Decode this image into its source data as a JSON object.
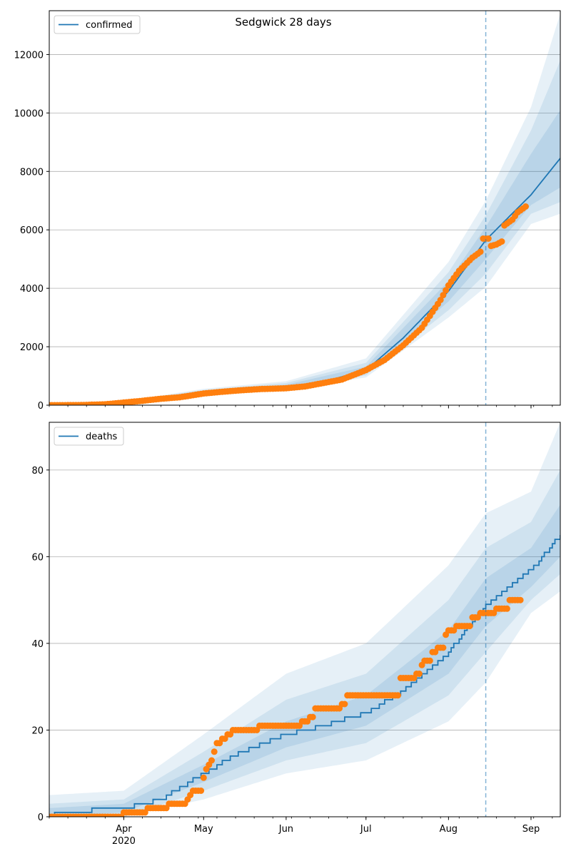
{
  "title": "Sedgwick 28 days",
  "colors": {
    "line": "#1f77b4",
    "observed": "#ff7f0e",
    "band": "#1f77b4",
    "grid": "#b0b0b0",
    "vline": "#1f77b4"
  },
  "x_axis": {
    "tick_labels": [
      "Apr",
      "May",
      "Jun",
      "Jul",
      "Aug",
      "Sep"
    ],
    "tick_dates": [
      "2020-04-01",
      "2020-05-01",
      "2020-06-01",
      "2020-07-01",
      "2020-08-01",
      "2020-09-01"
    ],
    "year_label": "2020",
    "xlim": [
      "2020-03-04",
      "2020-09-12"
    ],
    "forecast_start": "2020-08-15"
  },
  "chart_data": [
    {
      "type": "line",
      "legend": "confirmed",
      "legend_position": "top-left",
      "grid": "horizontal",
      "ylim": [
        0,
        13500
      ],
      "yticks": [
        0,
        2000,
        4000,
        6000,
        8000,
        10000,
        12000
      ],
      "forecast_median": [
        {
          "x": "2020-03-04",
          "y": 0
        },
        {
          "x": "2020-03-20",
          "y": 10
        },
        {
          "x": "2020-04-01",
          "y": 100
        },
        {
          "x": "2020-04-15",
          "y": 220
        },
        {
          "x": "2020-05-01",
          "y": 430
        },
        {
          "x": "2020-05-15",
          "y": 540
        },
        {
          "x": "2020-06-01",
          "y": 640
        },
        {
          "x": "2020-06-15",
          "y": 800
        },
        {
          "x": "2020-07-01",
          "y": 1200
        },
        {
          "x": "2020-07-15",
          "y": 2300
        },
        {
          "x": "2020-08-01",
          "y": 3900
        },
        {
          "x": "2020-08-15",
          "y": 5650
        },
        {
          "x": "2020-09-01",
          "y": 7200
        },
        {
          "x": "2020-09-12",
          "y": 8450
        }
      ],
      "bands": [
        {
          "lower": [
            {
              "x": "2020-03-04",
              "y": 0
            },
            {
              "x": "2020-04-01",
              "y": 80
            },
            {
              "x": "2020-05-01",
              "y": 330
            },
            {
              "x": "2020-06-01",
              "y": 520
            },
            {
              "x": "2020-07-01",
              "y": 950
            },
            {
              "x": "2020-08-01",
              "y": 3000
            },
            {
              "x": "2020-08-15",
              "y": 4050
            },
            {
              "x": "2020-09-01",
              "y": 6200
            },
            {
              "x": "2020-09-12",
              "y": 6550
            }
          ],
          "upper": [
            {
              "x": "2020-03-04",
              "y": 10
            },
            {
              "x": "2020-04-01",
              "y": 130
            },
            {
              "x": "2020-05-01",
              "y": 560
            },
            {
              "x": "2020-06-01",
              "y": 820
            },
            {
              "x": "2020-07-01",
              "y": 1600
            },
            {
              "x": "2020-08-01",
              "y": 4900
            },
            {
              "x": "2020-08-15",
              "y": 7000
            },
            {
              "x": "2020-09-01",
              "y": 10200
            },
            {
              "x": "2020-09-12",
              "y": 13400
            }
          ]
        },
        {
          "lower": [
            {
              "x": "2020-03-04",
              "y": 0
            },
            {
              "x": "2020-04-01",
              "y": 85
            },
            {
              "x": "2020-05-01",
              "y": 360
            },
            {
              "x": "2020-06-01",
              "y": 560
            },
            {
              "x": "2020-07-01",
              "y": 1020
            },
            {
              "x": "2020-08-01",
              "y": 3250
            },
            {
              "x": "2020-08-15",
              "y": 4500
            },
            {
              "x": "2020-09-01",
              "y": 6550
            },
            {
              "x": "2020-09-12",
              "y": 6950
            }
          ],
          "upper": [
            {
              "x": "2020-03-04",
              "y": 8
            },
            {
              "x": "2020-04-01",
              "y": 120
            },
            {
              "x": "2020-05-01",
              "y": 520
            },
            {
              "x": "2020-06-01",
              "y": 760
            },
            {
              "x": "2020-07-01",
              "y": 1450
            },
            {
              "x": "2020-08-01",
              "y": 4550
            },
            {
              "x": "2020-08-15",
              "y": 6500
            },
            {
              "x": "2020-09-01",
              "y": 9400
            },
            {
              "x": "2020-09-12",
              "y": 11800
            }
          ]
        },
        {
          "lower": [
            {
              "x": "2020-03-04",
              "y": 0
            },
            {
              "x": "2020-04-01",
              "y": 90
            },
            {
              "x": "2020-05-01",
              "y": 390
            },
            {
              "x": "2020-06-01",
              "y": 600
            },
            {
              "x": "2020-07-01",
              "y": 1100
            },
            {
              "x": "2020-08-01",
              "y": 3550
            },
            {
              "x": "2020-08-15",
              "y": 5000
            },
            {
              "x": "2020-09-01",
              "y": 6850
            },
            {
              "x": "2020-09-12",
              "y": 7450
            }
          ],
          "upper": [
            {
              "x": "2020-03-04",
              "y": 5
            },
            {
              "x": "2020-04-01",
              "y": 110
            },
            {
              "x": "2020-05-01",
              "y": 470
            },
            {
              "x": "2020-06-01",
              "y": 700
            },
            {
              "x": "2020-07-01",
              "y": 1320
            },
            {
              "x": "2020-08-01",
              "y": 4250
            },
            {
              "x": "2020-08-15",
              "y": 6100
            },
            {
              "x": "2020-09-01",
              "y": 8600
            },
            {
              "x": "2020-09-12",
              "y": 10100
            }
          ]
        }
      ],
      "observed": [
        {
          "x": "2020-03-04",
          "y": 0
        },
        {
          "x": "2020-03-15",
          "y": 2
        },
        {
          "x": "2020-03-25",
          "y": 30
        },
        {
          "x": "2020-04-01",
          "y": 90
        },
        {
          "x": "2020-04-08",
          "y": 150
        },
        {
          "x": "2020-04-15",
          "y": 220
        },
        {
          "x": "2020-04-22",
          "y": 270
        },
        {
          "x": "2020-05-01",
          "y": 400
        },
        {
          "x": "2020-05-08",
          "y": 460
        },
        {
          "x": "2020-05-15",
          "y": 510
        },
        {
          "x": "2020-05-22",
          "y": 550
        },
        {
          "x": "2020-06-01",
          "y": 580
        },
        {
          "x": "2020-06-08",
          "y": 640
        },
        {
          "x": "2020-06-15",
          "y": 760
        },
        {
          "x": "2020-06-22",
          "y": 880
        },
        {
          "x": "2020-07-01",
          "y": 1200
        },
        {
          "x": "2020-07-08",
          "y": 1550
        },
        {
          "x": "2020-07-15",
          "y": 2050
        },
        {
          "x": "2020-07-22",
          "y": 2650
        },
        {
          "x": "2020-07-29",
          "y": 3600
        },
        {
          "x": "2020-08-01",
          "y": 4100
        },
        {
          "x": "2020-08-05",
          "y": 4600
        },
        {
          "x": "2020-08-10",
          "y": 5050
        },
        {
          "x": "2020-08-13",
          "y": 5250
        },
        {
          "x": "2020-08-14",
          "y": 5700
        },
        {
          "x": "2020-08-16",
          "y": 5700
        },
        {
          "x": "2020-08-17",
          "y": 5450
        },
        {
          "x": "2020-08-19",
          "y": 5500
        },
        {
          "x": "2020-08-21",
          "y": 5600
        },
        {
          "x": "2020-08-22",
          "y": 6150
        },
        {
          "x": "2020-08-25",
          "y": 6350
        },
        {
          "x": "2020-08-27",
          "y": 6600
        },
        {
          "x": "2020-08-30",
          "y": 6800
        }
      ]
    },
    {
      "type": "line",
      "legend": "deaths",
      "legend_position": "top-left",
      "grid": "horizontal",
      "ylim": [
        0,
        91
      ],
      "yticks": [
        0,
        20,
        40,
        60,
        80
      ],
      "forecast_median": [
        {
          "x": "2020-03-04",
          "y": 0
        },
        {
          "x": "2020-03-08",
          "y": 1
        },
        {
          "x": "2020-04-01",
          "y": 2
        },
        {
          "x": "2020-04-15",
          "y": 4
        },
        {
          "x": "2020-05-01",
          "y": 10
        },
        {
          "x": "2020-05-15",
          "y": 15
        },
        {
          "x": "2020-06-01",
          "y": 19
        },
        {
          "x": "2020-06-15",
          "y": 21
        },
        {
          "x": "2020-07-01",
          "y": 24
        },
        {
          "x": "2020-07-15",
          "y": 29
        },
        {
          "x": "2020-08-01",
          "y": 38
        },
        {
          "x": "2020-08-15",
          "y": 49
        },
        {
          "x": "2020-09-01",
          "y": 57
        },
        {
          "x": "2020-09-12",
          "y": 65
        }
      ],
      "bands": [
        {
          "lower": [
            {
              "x": "2020-03-04",
              "y": 0
            },
            {
              "x": "2020-04-01",
              "y": 0
            },
            {
              "x": "2020-05-01",
              "y": 4
            },
            {
              "x": "2020-06-01",
              "y": 10
            },
            {
              "x": "2020-07-01",
              "y": 13
            },
            {
              "x": "2020-08-01",
              "y": 22
            },
            {
              "x": "2020-08-15",
              "y": 31
            },
            {
              "x": "2020-09-01",
              "y": 47
            },
            {
              "x": "2020-09-12",
              "y": 52
            }
          ],
          "upper": [
            {
              "x": "2020-03-04",
              "y": 5
            },
            {
              "x": "2020-04-01",
              "y": 6
            },
            {
              "x": "2020-05-01",
              "y": 19
            },
            {
              "x": "2020-06-01",
              "y": 33
            },
            {
              "x": "2020-07-01",
              "y": 40
            },
            {
              "x": "2020-08-01",
              "y": 58
            },
            {
              "x": "2020-08-15",
              "y": 70
            },
            {
              "x": "2020-09-01",
              "y": 75
            },
            {
              "x": "2020-09-12",
              "y": 91
            }
          ]
        },
        {
          "lower": [
            {
              "x": "2020-03-04",
              "y": 0
            },
            {
              "x": "2020-04-01",
              "y": 0
            },
            {
              "x": "2020-05-01",
              "y": 6
            },
            {
              "x": "2020-06-01",
              "y": 13
            },
            {
              "x": "2020-07-01",
              "y": 17
            },
            {
              "x": "2020-08-01",
              "y": 28
            },
            {
              "x": "2020-08-15",
              "y": 38
            },
            {
              "x": "2020-09-01",
              "y": 50
            },
            {
              "x": "2020-09-12",
              "y": 56
            }
          ],
          "upper": [
            {
              "x": "2020-03-04",
              "y": 3
            },
            {
              "x": "2020-04-01",
              "y": 4
            },
            {
              "x": "2020-05-01",
              "y": 15
            },
            {
              "x": "2020-06-01",
              "y": 27
            },
            {
              "x": "2020-07-01",
              "y": 33
            },
            {
              "x": "2020-08-01",
              "y": 50
            },
            {
              "x": "2020-08-15",
              "y": 62
            },
            {
              "x": "2020-09-01",
              "y": 68
            },
            {
              "x": "2020-09-12",
              "y": 80
            }
          ]
        },
        {
          "lower": [
            {
              "x": "2020-03-04",
              "y": 0
            },
            {
              "x": "2020-04-01",
              "y": 1
            },
            {
              "x": "2020-05-01",
              "y": 8
            },
            {
              "x": "2020-06-01",
              "y": 16
            },
            {
              "x": "2020-07-01",
              "y": 21
            },
            {
              "x": "2020-08-01",
              "y": 33
            },
            {
              "x": "2020-08-15",
              "y": 44
            },
            {
              "x": "2020-09-01",
              "y": 53
            },
            {
              "x": "2020-09-12",
              "y": 60
            }
          ],
          "upper": [
            {
              "x": "2020-03-04",
              "y": 2
            },
            {
              "x": "2020-04-01",
              "y": 3
            },
            {
              "x": "2020-05-01",
              "y": 12
            },
            {
              "x": "2020-06-01",
              "y": 22
            },
            {
              "x": "2020-07-01",
              "y": 28
            },
            {
              "x": "2020-08-01",
              "y": 43
            },
            {
              "x": "2020-08-15",
              "y": 55
            },
            {
              "x": "2020-09-01",
              "y": 62
            },
            {
              "x": "2020-09-12",
              "y": 72
            }
          ]
        }
      ],
      "observed": [
        {
          "x": "2020-03-04",
          "y": 0
        },
        {
          "x": "2020-03-31",
          "y": 0
        },
        {
          "x": "2020-04-01",
          "y": 1
        },
        {
          "x": "2020-04-09",
          "y": 1
        },
        {
          "x": "2020-04-10",
          "y": 2
        },
        {
          "x": "2020-04-17",
          "y": 2
        },
        {
          "x": "2020-04-18",
          "y": 3
        },
        {
          "x": "2020-04-23",
          "y": 3
        },
        {
          "x": "2020-04-25",
          "y": 4
        },
        {
          "x": "2020-04-26",
          "y": 5
        },
        {
          "x": "2020-04-27",
          "y": 6
        },
        {
          "x": "2020-04-30",
          "y": 6
        },
        {
          "x": "2020-05-01",
          "y": 9
        },
        {
          "x": "2020-05-02",
          "y": 11
        },
        {
          "x": "2020-05-03",
          "y": 12
        },
        {
          "x": "2020-05-04",
          "y": 13
        },
        {
          "x": "2020-05-05",
          "y": 15
        },
        {
          "x": "2020-05-06",
          "y": 17
        },
        {
          "x": "2020-05-08",
          "y": 18
        },
        {
          "x": "2020-05-10",
          "y": 19
        },
        {
          "x": "2020-05-12",
          "y": 20
        },
        {
          "x": "2020-05-20",
          "y": 20
        },
        {
          "x": "2020-05-22",
          "y": 21
        },
        {
          "x": "2020-06-06",
          "y": 21
        },
        {
          "x": "2020-06-07",
          "y": 22
        },
        {
          "x": "2020-06-10",
          "y": 23
        },
        {
          "x": "2020-06-12",
          "y": 25
        },
        {
          "x": "2020-06-21",
          "y": 25
        },
        {
          "x": "2020-06-22",
          "y": 26
        },
        {
          "x": "2020-06-24",
          "y": 28
        },
        {
          "x": "2020-07-13",
          "y": 28
        },
        {
          "x": "2020-07-14",
          "y": 32
        },
        {
          "x": "2020-07-19",
          "y": 32
        },
        {
          "x": "2020-07-20",
          "y": 33
        },
        {
          "x": "2020-07-22",
          "y": 35
        },
        {
          "x": "2020-07-23",
          "y": 36
        },
        {
          "x": "2020-07-26",
          "y": 38
        },
        {
          "x": "2020-07-28",
          "y": 39
        },
        {
          "x": "2020-07-31",
          "y": 42
        },
        {
          "x": "2020-08-01",
          "y": 43
        },
        {
          "x": "2020-08-04",
          "y": 44
        },
        {
          "x": "2020-08-09",
          "y": 44
        },
        {
          "x": "2020-08-10",
          "y": 46
        },
        {
          "x": "2020-08-13",
          "y": 47
        },
        {
          "x": "2020-08-18",
          "y": 47
        },
        {
          "x": "2020-08-19",
          "y": 48
        },
        {
          "x": "2020-08-23",
          "y": 48
        },
        {
          "x": "2020-08-24",
          "y": 50
        },
        {
          "x": "2020-08-28",
          "y": 50
        }
      ]
    }
  ]
}
